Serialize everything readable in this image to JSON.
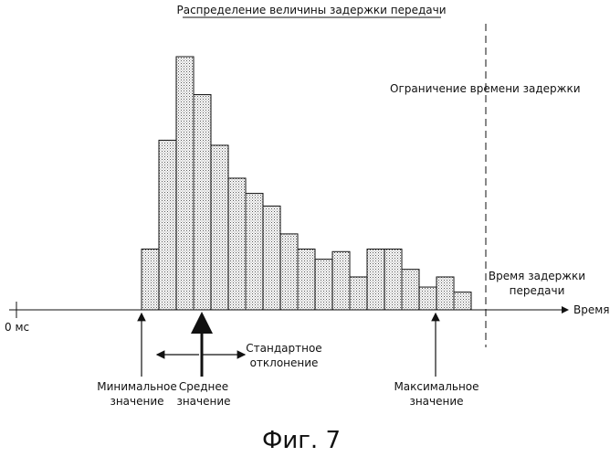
{
  "chart_data": {
    "type": "bar",
    "title": "Распределение величины задержки передачи",
    "xlabel": "Время",
    "origin_label": "0 мс",
    "caption": "Фиг. 7",
    "bar_heights_relative": [
      0.24,
      0.67,
      1.0,
      0.85,
      0.65,
      0.52,
      0.46,
      0.41,
      0.3,
      0.24,
      0.2,
      0.23,
      0.13,
      0.24,
      0.24,
      0.16,
      0.09,
      0.13,
      0.07
    ],
    "delay_limit_label": "Ограничение времени задержки",
    "delay_time_label": [
      "Время задержки",
      "передачи"
    ],
    "markers": {
      "min": [
        "Минимальное",
        "значение"
      ],
      "mean": [
        "Среднее",
        "значение"
      ],
      "max": [
        "Максимальное",
        "значение"
      ]
    },
    "std_label": [
      "Стандартное",
      "отклонение"
    ]
  }
}
